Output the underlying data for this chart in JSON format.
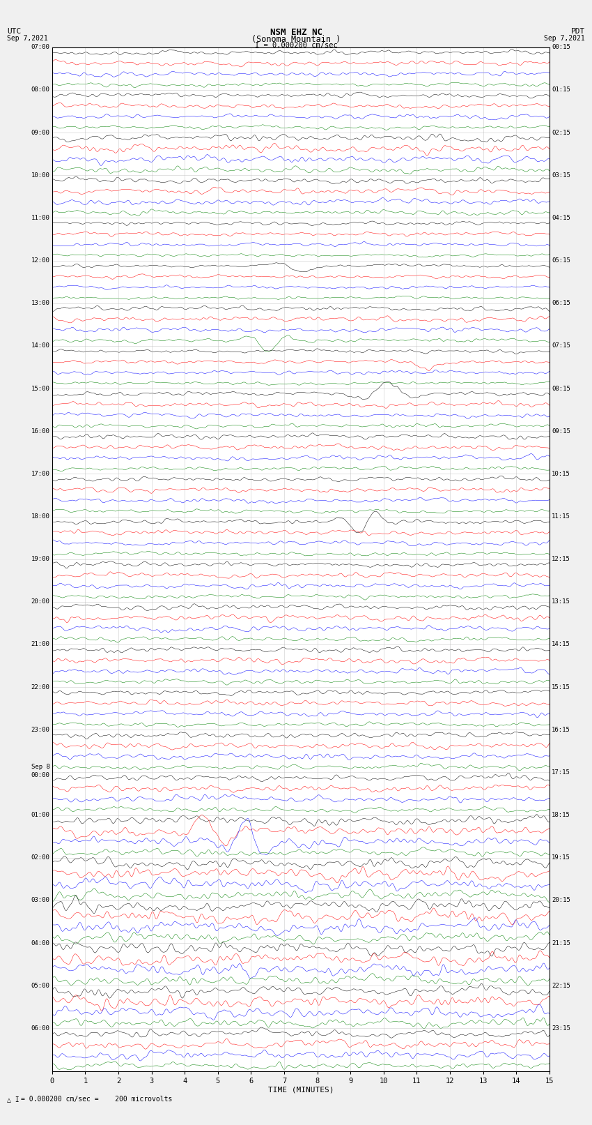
{
  "title_line1": "NSM EHZ NC",
  "title_line2": "(Sonoma Mountain )",
  "scale_label": "I = 0.000200 cm/sec",
  "left_header": "UTC",
  "left_date": "Sep 7,2021",
  "right_header": "PDT",
  "right_date": "Sep 7,2021",
  "xlabel": "TIME (MINUTES)",
  "bottom_label": "= 0.000200 cm/sec =    200 microvolts",
  "bottom_prefix": "△ I",
  "utc_times": [
    "07:00",
    "08:00",
    "09:00",
    "10:00",
    "11:00",
    "12:00",
    "13:00",
    "14:00",
    "15:00",
    "16:00",
    "17:00",
    "18:00",
    "19:00",
    "20:00",
    "21:00",
    "22:00",
    "23:00",
    "Sep 8\n00:00",
    "01:00",
    "02:00",
    "03:00",
    "04:00",
    "05:00",
    "06:00"
  ],
  "pdt_times": [
    "00:15",
    "01:15",
    "02:15",
    "03:15",
    "04:15",
    "05:15",
    "06:15",
    "07:15",
    "08:15",
    "09:15",
    "10:15",
    "11:15",
    "12:15",
    "13:15",
    "14:15",
    "15:15",
    "16:15",
    "17:15",
    "18:15",
    "19:15",
    "20:15",
    "21:15",
    "22:15",
    "23:15"
  ],
  "colors": [
    "black",
    "red",
    "blue",
    "green"
  ],
  "n_hours": 24,
  "traces_per_hour": 4,
  "minutes": 15,
  "bg_color": "#f0f0f0",
  "plot_bg": "white",
  "grid_color": "#aaaaaa",
  "figwidth": 8.5,
  "figheight": 16.13,
  "hour_amplitudes": [
    0.28,
    0.28,
    0.45,
    0.35,
    0.22,
    0.2,
    0.3,
    0.22,
    0.28,
    0.3,
    0.28,
    0.28,
    0.3,
    0.35,
    0.32,
    0.3,
    0.35,
    0.38,
    0.55,
    0.7,
    0.75,
    0.72,
    0.65,
    0.5
  ]
}
